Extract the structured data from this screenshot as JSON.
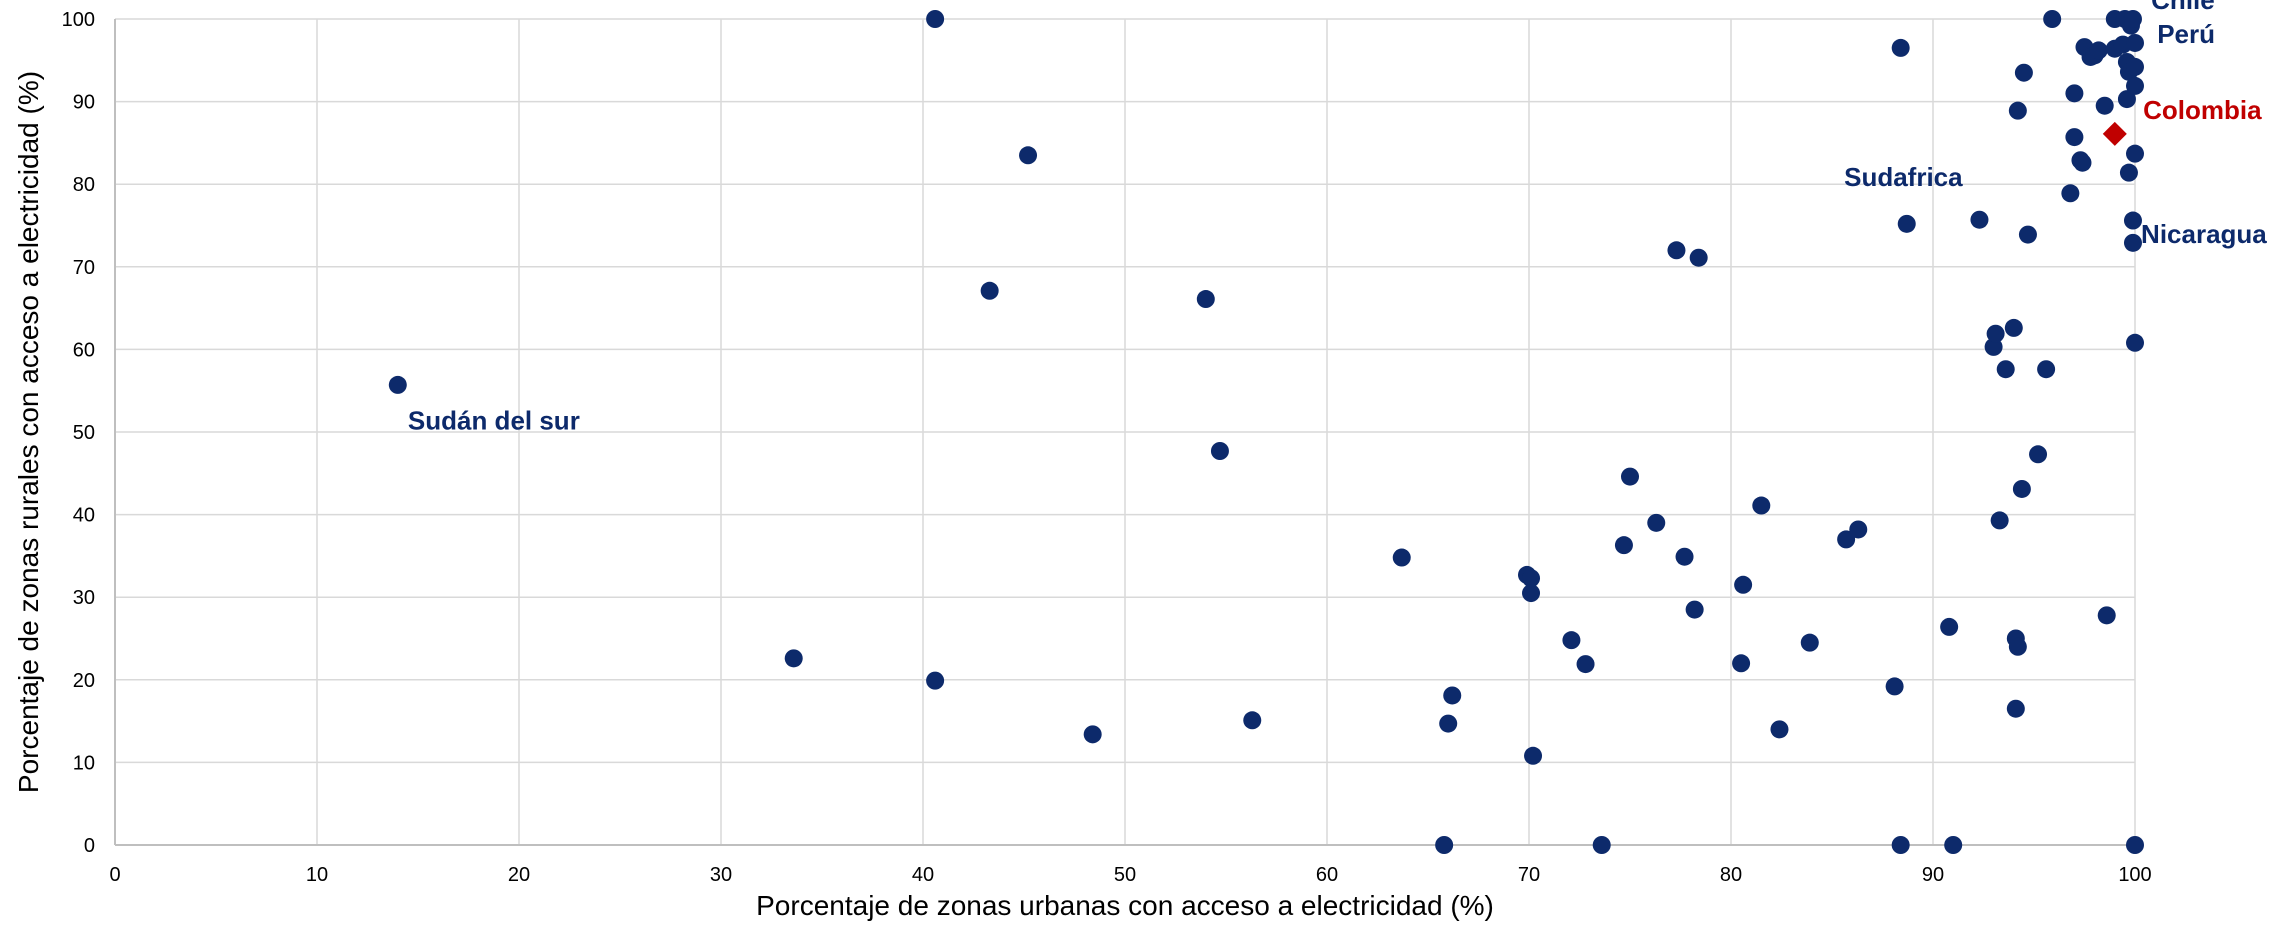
{
  "chart_data": {
    "type": "scatter",
    "title": "",
    "xlabel": "Porcentaje de zonas urbanas con acceso a electricidad (%)",
    "ylabel": "Porcentaje de zonas rurales con acceso a electricidad (%)",
    "xlim": [
      0,
      100
    ],
    "ylim": [
      0,
      100
    ],
    "xticks": [
      "0",
      "10",
      "20",
      "30",
      "40",
      "50",
      "60",
      "70",
      "80",
      "90",
      "100"
    ],
    "yticks": [
      "0",
      "10",
      "20",
      "30",
      "40",
      "50",
      "60",
      "70",
      "80",
      "90",
      "100"
    ],
    "grid": true,
    "colors": {
      "points": "#0d2a6b",
      "highlight": "#c00000",
      "grid": "#d9d9d9"
    },
    "series": [
      {
        "marker": "circle",
        "points": [
          [
            14,
            55.7
          ],
          [
            33.6,
            22.6
          ],
          [
            40.6,
            100
          ],
          [
            40.6,
            19.9
          ],
          [
            43.3,
            67.1
          ],
          [
            45.2,
            83.5
          ],
          [
            48.4,
            13.4
          ],
          [
            54,
            66.1
          ],
          [
            54.7,
            47.7
          ],
          [
            56.3,
            15.1
          ],
          [
            63.7,
            34.8
          ],
          [
            65.8,
            0
          ],
          [
            66,
            14.7
          ],
          [
            66.2,
            18.1
          ],
          [
            69.9,
            32.7
          ],
          [
            70.1,
            32.3
          ],
          [
            70.1,
            30.5
          ],
          [
            70.2,
            10.8
          ],
          [
            72.1,
            24.8
          ],
          [
            72.8,
            21.9
          ],
          [
            73.6,
            0
          ],
          [
            74.7,
            36.3
          ],
          [
            75,
            44.6
          ],
          [
            76.3,
            39
          ],
          [
            77.3,
            72
          ],
          [
            77.7,
            34.9
          ],
          [
            78.2,
            28.5
          ],
          [
            78.4,
            71.1
          ],
          [
            80.5,
            22
          ],
          [
            80.6,
            31.5
          ],
          [
            81.5,
            41.1
          ],
          [
            82.4,
            14
          ],
          [
            83.9,
            24.5
          ],
          [
            85.7,
            37
          ],
          [
            86.3,
            38.2
          ],
          [
            88.1,
            19.2
          ],
          [
            88.4,
            96.5
          ],
          [
            88.4,
            0
          ],
          [
            88.7,
            75.2
          ],
          [
            90.8,
            26.4
          ],
          [
            91,
            0
          ],
          [
            92.3,
            75.7
          ],
          [
            93,
            60.3
          ],
          [
            93.1,
            61.9
          ],
          [
            93.3,
            39.3
          ],
          [
            93.6,
            57.6
          ],
          [
            94,
            62.6
          ],
          [
            94.1,
            25
          ],
          [
            94.1,
            16.5
          ],
          [
            94.2,
            24
          ],
          [
            94.2,
            88.9
          ],
          [
            94.4,
            43.1
          ],
          [
            94.5,
            93.5
          ],
          [
            94.7,
            73.9
          ],
          [
            95.2,
            47.3
          ],
          [
            95.6,
            57.6
          ],
          [
            95.9,
            100
          ],
          [
            96.8,
            78.9
          ],
          [
            97,
            85.7
          ],
          [
            97,
            91
          ],
          [
            97.3,
            82.9
          ],
          [
            97.4,
            82.6
          ],
          [
            97.5,
            96.6
          ],
          [
            97.8,
            95.4
          ],
          [
            98,
            95.6
          ],
          [
            98.2,
            96.2
          ],
          [
            98.5,
            89.5
          ],
          [
            98.6,
            27.8
          ],
          [
            99,
            100
          ],
          [
            99,
            96.4
          ],
          [
            99.4,
            96.9
          ],
          [
            99.5,
            100
          ],
          [
            99.6,
            94.8
          ],
          [
            99.6,
            90.3
          ],
          [
            99.7,
            81.4
          ],
          [
            99.7,
            93.6
          ],
          [
            99.8,
            99.2
          ],
          [
            99.9,
            75.6
          ],
          [
            99.9,
            72.9
          ],
          [
            99.9,
            100
          ],
          [
            100,
            97.1
          ],
          [
            100,
            94.2
          ],
          [
            100,
            91.9
          ],
          [
            100,
            83.7
          ],
          [
            100,
            60.8
          ],
          [
            100,
            0
          ]
        ]
      },
      {
        "marker": "diamond",
        "points": [
          [
            99,
            86.1
          ]
        ]
      }
    ],
    "annotations": [
      {
        "text": "Sudán del sur",
        "x": 14.5,
        "y": 50.3,
        "color": "#0d2a6b"
      },
      {
        "text": "Sudafrica",
        "x": 85.6,
        "y": 79.8,
        "color": "#0d2a6b"
      },
      {
        "text": "Chile",
        "x": 100.8,
        "y": 101.2,
        "color": "#0d2a6b"
      },
      {
        "text": "Perú",
        "x": 101.1,
        "y": 97.1,
        "color": "#0d2a6b"
      },
      {
        "text": "Colombia",
        "x": 100.4,
        "y": 87.9,
        "color": "#c00000"
      },
      {
        "text": "Nicaragua",
        "x": 100.3,
        "y": 72.9,
        "color": "#0d2a6b"
      }
    ]
  }
}
